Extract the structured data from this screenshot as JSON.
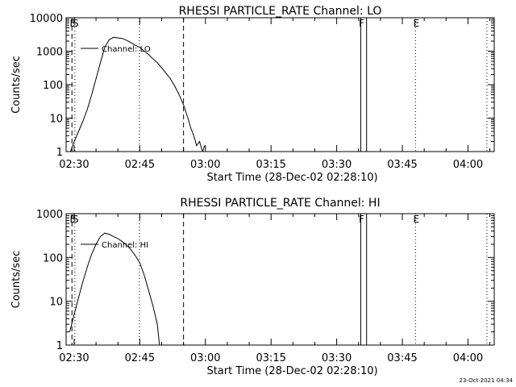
{
  "chart_data": [
    {
      "type": "line",
      "title": "RHESSI PARTICLE_RATE Channel: LO",
      "xlabel": "Start Time (28-Dec-02 02:28:10)",
      "ylabel": "Counts/sec",
      "yscale": "log",
      "xlim": [
        "02:28:10",
        "04:06:00"
      ],
      "ylim": [
        1,
        10000
      ],
      "xticks": [
        "02:30",
        "02:45",
        "03:00",
        "03:15",
        "03:30",
        "03:45",
        "04:00"
      ],
      "yticks": [
        "1",
        "10",
        "100",
        "1000",
        "10000"
      ],
      "grid": false,
      "legend": "top-left",
      "series": [
        {
          "name": "Channel: LO",
          "x": [
            "02:29:10",
            "02:30:00",
            "02:31:00",
            "02:32:00",
            "02:33:00",
            "02:34:00",
            "02:35:00",
            "02:36:00",
            "02:37:00",
            "02:38:00",
            "02:39:00",
            "02:40:00",
            "02:41:00",
            "02:42:00",
            "02:43:00",
            "02:44:00",
            "02:45:00",
            "02:46:00",
            "02:47:00",
            "02:48:00",
            "02:49:00",
            "02:50:00",
            "02:51:00",
            "02:52:00",
            "02:53:00",
            "02:54:00",
            "02:55:00",
            "02:56:00",
            "02:56:40",
            "02:57:20",
            "02:58:00",
            "02:58:40",
            "02:59:20",
            "02:59:50"
          ],
          "values": [
            1,
            2,
            4,
            8,
            18,
            50,
            150,
            450,
            1300,
            2200,
            2600,
            2500,
            2400,
            2100,
            1800,
            1500,
            1300,
            1000,
            800,
            600,
            450,
            320,
            220,
            150,
            90,
            50,
            25,
            10,
            5,
            3,
            1.5,
            2,
            1,
            1.5
          ]
        }
      ],
      "markers": [
        {
          "label": "E",
          "x": "02:29:30",
          "style": "dashed"
        },
        {
          "label": "S",
          "x": "02:30:10",
          "style": "dotted"
        },
        {
          "label": "",
          "x": "02:44:55",
          "style": "dotted"
        },
        {
          "label": "",
          "x": "02:55:00",
          "style": "dashed"
        },
        {
          "label": "F",
          "x": "03:35:30",
          "style": "solid"
        },
        {
          "label": "",
          "x": "03:36:50",
          "style": "solid"
        },
        {
          "label": "E",
          "x": "03:48:00",
          "style": "dotted"
        },
        {
          "label": "",
          "x": "04:04:20",
          "style": "dotted"
        }
      ]
    },
    {
      "type": "line",
      "title": "RHESSI PARTICLE_RATE Channel: HI",
      "xlabel": "Start Time (28-Dec-02 02:28:10)",
      "ylabel": "Counts/sec",
      "yscale": "log",
      "xlim": [
        "02:28:10",
        "04:06:00"
      ],
      "ylim": [
        1,
        1000
      ],
      "xticks": [
        "02:30",
        "02:45",
        "03:00",
        "03:15",
        "03:30",
        "03:45",
        "04:00"
      ],
      "yticks": [
        "1",
        "10",
        "100",
        "1000"
      ],
      "grid": false,
      "legend": "top-left",
      "series": [
        {
          "name": "Channel: HI",
          "x": [
            "02:29:00",
            "02:30:00",
            "02:31:00",
            "02:32:00",
            "02:33:00",
            "02:34:00",
            "02:35:00",
            "02:36:00",
            "02:37:00",
            "02:38:00",
            "02:39:00",
            "02:40:00",
            "02:41:00",
            "02:42:00",
            "02:43:00",
            "02:44:00",
            "02:45:00",
            "02:46:00",
            "02:47:00",
            "02:48:00",
            "02:49:00",
            "02:49:30"
          ],
          "values": [
            2,
            5,
            12,
            28,
            60,
            120,
            200,
            300,
            360,
            340,
            300,
            270,
            230,
            190,
            150,
            110,
            75,
            40,
            18,
            8,
            3,
            1
          ]
        }
      ],
      "markers": [
        {
          "label": "E",
          "x": "02:29:30",
          "style": "dashed"
        },
        {
          "label": "S",
          "x": "02:30:10",
          "style": "dotted"
        },
        {
          "label": "",
          "x": "02:44:55",
          "style": "dotted"
        },
        {
          "label": "",
          "x": "02:55:00",
          "style": "dashed"
        },
        {
          "label": "F",
          "x": "03:35:30",
          "style": "solid"
        },
        {
          "label": "",
          "x": "03:36:50",
          "style": "solid"
        },
        {
          "label": "E",
          "x": "03:48:00",
          "style": "dotted"
        },
        {
          "label": "",
          "x": "04:04:20",
          "style": "dotted"
        }
      ]
    }
  ],
  "footer": {
    "timestamp": "23-Oct-2021 04:34"
  }
}
